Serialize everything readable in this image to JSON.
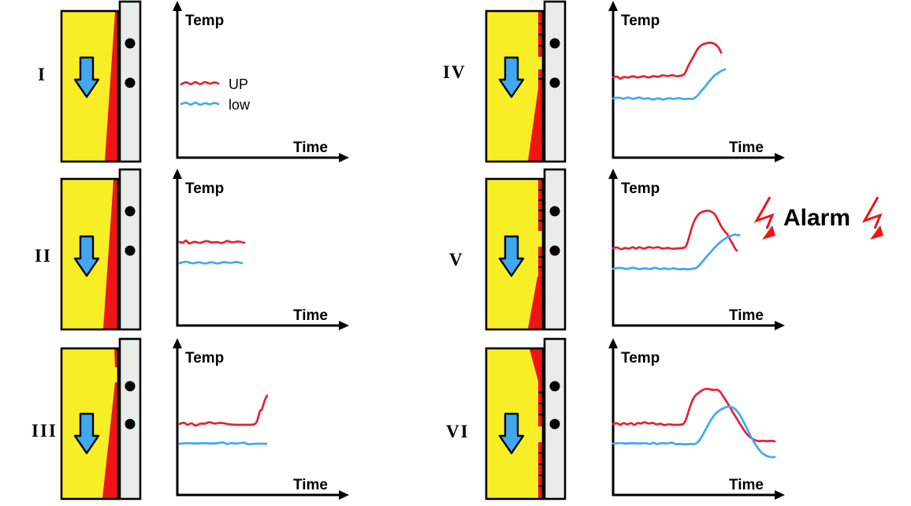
{
  "colors": {
    "red": "#ee1515",
    "yellow": "#f7ee26",
    "blue": "#3fa8f0",
    "wall_grey": "#e9edea",
    "curve_red": "#e8212e",
    "curve_blue": "#3fa9f5"
  },
  "axis": {
    "y_label": "Temp",
    "x_label": "Time"
  },
  "legend": {
    "up": "UP",
    "low": "low"
  },
  "alarm": {
    "label": "Alarm"
  },
  "panels": [
    {
      "numeral": "I",
      "graph": {
        "legend_up": [
          [
            20,
            107
          ],
          [
            26,
            103
          ],
          [
            32,
            108
          ],
          [
            38,
            103
          ],
          [
            44,
            108
          ],
          [
            50,
            103
          ],
          [
            56,
            107
          ],
          [
            62,
            104
          ],
          [
            67,
            106
          ]
        ],
        "legend_low": [
          [
            20,
            132
          ],
          [
            26,
            129
          ],
          [
            32,
            134
          ],
          [
            38,
            129
          ],
          [
            44,
            134
          ],
          [
            50,
            130
          ],
          [
            56,
            133
          ],
          [
            62,
            130
          ],
          [
            67,
            132
          ]
        ]
      }
    },
    {
      "numeral": "II",
      "graph": {
        "red": [
          [
            18,
            94
          ],
          [
            22,
            96
          ],
          [
            26,
            91
          ],
          [
            30,
            97
          ],
          [
            36,
            93
          ],
          [
            44,
            96
          ],
          [
            52,
            92
          ],
          [
            58,
            95
          ],
          [
            66,
            94
          ],
          [
            72,
            96
          ],
          [
            78,
            92
          ],
          [
            84,
            95
          ],
          [
            92,
            93
          ],
          [
            100,
            95
          ]
        ],
        "blue": [
          [
            18,
            121
          ],
          [
            26,
            118
          ],
          [
            34,
            122
          ],
          [
            42,
            119
          ],
          [
            50,
            122
          ],
          [
            58,
            119
          ],
          [
            66,
            122
          ],
          [
            74,
            119
          ],
          [
            82,
            121
          ],
          [
            90,
            119
          ],
          [
            97,
            121
          ]
        ]
      }
    },
    {
      "numeral": "III",
      "graph": {
        "red": [
          [
            18,
            110
          ],
          [
            23,
            107
          ],
          [
            28,
            112
          ],
          [
            33,
            108
          ],
          [
            38,
            113
          ],
          [
            44,
            109
          ],
          [
            50,
            110
          ],
          [
            56,
            107
          ],
          [
            62,
            110
          ],
          [
            70,
            108
          ],
          [
            78,
            110
          ],
          [
            86,
            111
          ],
          [
            95,
            111
          ],
          [
            104,
            111
          ],
          [
            112,
            111
          ],
          [
            116,
            108
          ],
          [
            118,
            100
          ],
          [
            120,
            92
          ],
          [
            122,
            93
          ],
          [
            124,
            86
          ],
          [
            127,
            77
          ],
          [
            129,
            74
          ]
        ],
        "blue": [
          [
            18,
            135
          ],
          [
            28,
            134
          ],
          [
            38,
            135
          ],
          [
            48,
            134
          ],
          [
            58,
            135
          ],
          [
            68,
            134
          ],
          [
            74,
            133
          ],
          [
            78,
            136
          ],
          [
            82,
            134
          ],
          [
            92,
            135
          ],
          [
            100,
            133
          ],
          [
            104,
            136
          ],
          [
            112,
            135
          ],
          [
            120,
            135
          ],
          [
            128,
            135
          ]
        ]
      }
    },
    {
      "numeral": "IV",
      "graph": {
        "red": [
          [
            15,
            98
          ],
          [
            20,
            96
          ],
          [
            24,
            101
          ],
          [
            28,
            97
          ],
          [
            34,
            99
          ],
          [
            40,
            96
          ],
          [
            46,
            99
          ],
          [
            54,
            96
          ],
          [
            60,
            99
          ],
          [
            66,
            96
          ],
          [
            72,
            98
          ],
          [
            78,
            95
          ],
          [
            84,
            97
          ],
          [
            90,
            95
          ],
          [
            96,
            97
          ],
          [
            102,
            96
          ],
          [
            106,
            94
          ],
          [
            110,
            84
          ],
          [
            114,
            77
          ],
          [
            118,
            70
          ],
          [
            122,
            62
          ],
          [
            127,
            57
          ],
          [
            132,
            55
          ],
          [
            138,
            54
          ],
          [
            143,
            55
          ],
          [
            147,
            58
          ],
          [
            150,
            62
          ],
          [
            152,
            67
          ]
        ],
        "blue": [
          [
            15,
            125
          ],
          [
            22,
            123
          ],
          [
            28,
            126
          ],
          [
            34,
            123
          ],
          [
            40,
            126
          ],
          [
            48,
            123
          ],
          [
            54,
            126
          ],
          [
            60,
            124
          ],
          [
            66,
            127
          ],
          [
            72,
            124
          ],
          [
            78,
            127
          ],
          [
            86,
            124
          ],
          [
            92,
            126
          ],
          [
            98,
            124
          ],
          [
            104,
            126
          ],
          [
            110,
            125
          ],
          [
            116,
            126
          ],
          [
            122,
            122
          ],
          [
            127,
            115
          ],
          [
            132,
            110
          ],
          [
            136,
            104
          ],
          [
            140,
            100
          ],
          [
            144,
            95
          ],
          [
            148,
            93
          ],
          [
            152,
            90
          ],
          [
            157,
            88
          ]
        ]
      }
    },
    {
      "numeral": "V",
      "graph": {
        "red": [
          [
            15,
            102
          ],
          [
            20,
            100
          ],
          [
            25,
            104
          ],
          [
            30,
            101
          ],
          [
            35,
            103
          ],
          [
            40,
            100
          ],
          [
            44,
            103
          ],
          [
            48,
            100
          ],
          [
            54,
            103
          ],
          [
            60,
            100
          ],
          [
            66,
            102
          ],
          [
            72,
            100
          ],
          [
            78,
            103
          ],
          [
            84,
            101
          ],
          [
            90,
            103
          ],
          [
            96,
            102
          ],
          [
            102,
            102
          ],
          [
            107,
            101
          ],
          [
            110,
            93
          ],
          [
            113,
            82
          ],
          [
            116,
            72
          ],
          [
            120,
            63
          ],
          [
            125,
            57
          ],
          [
            130,
            55
          ],
          [
            136,
            54
          ],
          [
            141,
            56
          ],
          [
            145,
            60
          ],
          [
            148,
            66
          ],
          [
            152,
            74
          ],
          [
            156,
            80
          ],
          [
            160,
            84
          ],
          [
            164,
            92
          ],
          [
            167,
            97
          ],
          [
            170,
            103
          ],
          [
            172,
            105
          ]
        ],
        "blue": [
          [
            15,
            128
          ],
          [
            24,
            126
          ],
          [
            32,
            129
          ],
          [
            40,
            126
          ],
          [
            48,
            129
          ],
          [
            56,
            127
          ],
          [
            62,
            129
          ],
          [
            68,
            126
          ],
          [
            74,
            129
          ],
          [
            80,
            127
          ],
          [
            86,
            129
          ],
          [
            92,
            127
          ],
          [
            98,
            129
          ],
          [
            104,
            128
          ],
          [
            110,
            129
          ],
          [
            116,
            128
          ],
          [
            121,
            127
          ],
          [
            126,
            122
          ],
          [
            130,
            117
          ],
          [
            134,
            112
          ],
          [
            138,
            108
          ],
          [
            142,
            103
          ],
          [
            146,
            99
          ],
          [
            150,
            95
          ],
          [
            154,
            92
          ],
          [
            158,
            89
          ],
          [
            162,
            87
          ],
          [
            166,
            86
          ],
          [
            170,
            84
          ],
          [
            173,
            86
          ],
          [
            175,
            85
          ]
        ]
      }
    },
    {
      "numeral": "VI",
      "graph": {
        "red": [
          [
            15,
            110
          ],
          [
            20,
            108
          ],
          [
            24,
            112
          ],
          [
            28,
            108
          ],
          [
            33,
            111
          ],
          [
            38,
            108
          ],
          [
            42,
            112
          ],
          [
            46,
            108
          ],
          [
            50,
            110
          ],
          [
            55,
            107
          ],
          [
            60,
            110
          ],
          [
            65,
            108
          ],
          [
            70,
            111
          ],
          [
            75,
            109
          ],
          [
            80,
            112
          ],
          [
            85,
            110
          ],
          [
            90,
            111
          ],
          [
            95,
            111
          ],
          [
            100,
            111
          ],
          [
            105,
            110
          ],
          [
            108,
            103
          ],
          [
            111,
            93
          ],
          [
            114,
            84
          ],
          [
            117,
            77
          ],
          [
            120,
            73
          ],
          [
            124,
            70
          ],
          [
            128,
            67
          ],
          [
            133,
            65
          ],
          [
            138,
            66
          ],
          [
            143,
            67
          ],
          [
            147,
            66
          ],
          [
            150,
            68
          ],
          [
            153,
            72
          ],
          [
            156,
            77
          ],
          [
            160,
            83
          ],
          [
            164,
            90
          ],
          [
            168,
            97
          ],
          [
            172,
            103
          ],
          [
            176,
            110
          ],
          [
            180,
            116
          ],
          [
            184,
            122
          ],
          [
            188,
            126
          ],
          [
            192,
            129
          ],
          [
            196,
            131
          ],
          [
            200,
            132
          ],
          [
            205,
            131
          ],
          [
            210,
            132
          ],
          [
            215,
            131
          ],
          [
            220,
            132
          ]
        ],
        "blue": [
          [
            15,
            135
          ],
          [
            24,
            134
          ],
          [
            32,
            135
          ],
          [
            40,
            134
          ],
          [
            48,
            135
          ],
          [
            56,
            134
          ],
          [
            62,
            136
          ],
          [
            66,
            133
          ],
          [
            70,
            136
          ],
          [
            76,
            134
          ],
          [
            84,
            135
          ],
          [
            90,
            133
          ],
          [
            94,
            136
          ],
          [
            100,
            135
          ],
          [
            106,
            136
          ],
          [
            112,
            135
          ],
          [
            118,
            136
          ],
          [
            123,
            133
          ],
          [
            127,
            127
          ],
          [
            131,
            120
          ],
          [
            135,
            112
          ],
          [
            139,
            105
          ],
          [
            143,
            99
          ],
          [
            147,
            95
          ],
          [
            151,
            92
          ],
          [
            155,
            90
          ],
          [
            159,
            88
          ],
          [
            163,
            88
          ],
          [
            167,
            89
          ],
          [
            171,
            92
          ],
          [
            175,
            97
          ],
          [
            179,
            104
          ],
          [
            183,
            112
          ],
          [
            187,
            120
          ],
          [
            191,
            128
          ],
          [
            195,
            135
          ],
          [
            199,
            141
          ],
          [
            203,
            146
          ],
          [
            207,
            149
          ],
          [
            211,
            151
          ],
          [
            215,
            152
          ],
          [
            220,
            152
          ]
        ]
      }
    }
  ]
}
